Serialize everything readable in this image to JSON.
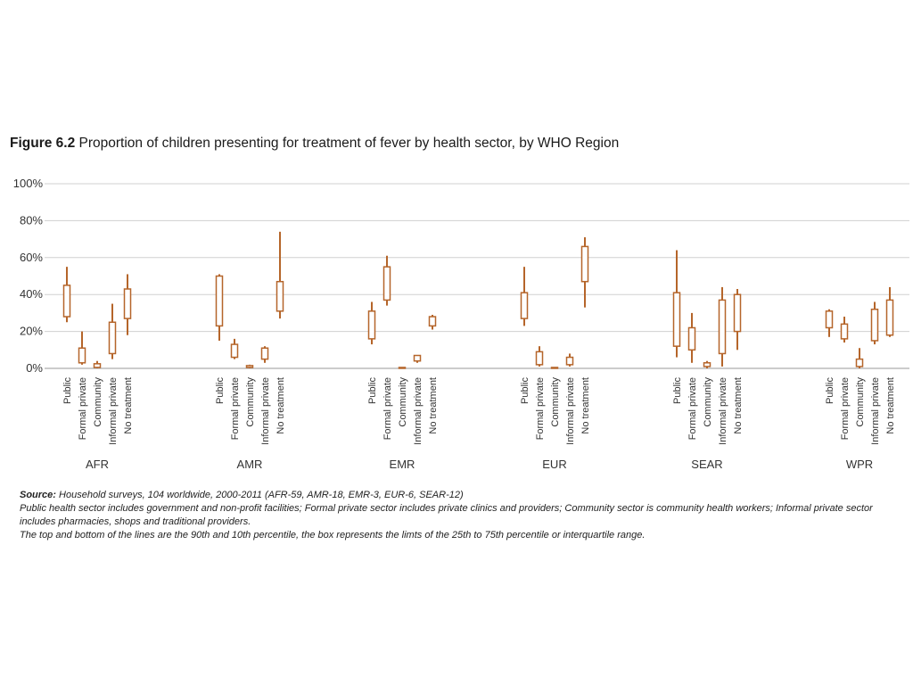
{
  "figure": {
    "label": "Figure 6.2",
    "title": "Proportion of children presenting for treatment of fever by health sector, by WHO Region"
  },
  "chart_data": {
    "type": "box",
    "ylim": [
      0,
      100
    ],
    "yticks": [
      0,
      20,
      40,
      60,
      80,
      100
    ],
    "ytick_labels": [
      "0%",
      "20%",
      "40%",
      "60%",
      "80%",
      "100%"
    ],
    "grid": true,
    "color": "#b5652a",
    "sectors": [
      "Public",
      "Formal private",
      "Community",
      "Informal private",
      "No treatment"
    ],
    "regions": [
      {
        "name": "AFR",
        "boxes": [
          {
            "p10": 25,
            "q1": 28,
            "q3": 45,
            "p90": 55
          },
          {
            "p10": 2,
            "q1": 3,
            "q3": 11,
            "p90": 20
          },
          {
            "p10": 0,
            "q1": 0.5,
            "q3": 2.5,
            "p90": 4
          },
          {
            "p10": 5,
            "q1": 8,
            "q3": 25,
            "p90": 35
          },
          {
            "p10": 18,
            "q1": 27,
            "q3": 43,
            "p90": 51
          }
        ]
      },
      {
        "name": "AMR",
        "boxes": [
          {
            "p10": 15,
            "q1": 23,
            "q3": 50,
            "p90": 51
          },
          {
            "p10": 5,
            "q1": 6,
            "q3": 13,
            "p90": 16
          },
          {
            "p10": 0,
            "q1": 0.5,
            "q3": 1.5,
            "p90": 2
          },
          {
            "p10": 3,
            "q1": 5,
            "q3": 11,
            "p90": 12
          },
          {
            "p10": 27,
            "q1": 31,
            "q3": 47,
            "p90": 74
          }
        ]
      },
      {
        "name": "EMR",
        "boxes": [
          {
            "p10": 13,
            "q1": 16,
            "q3": 31,
            "p90": 36
          },
          {
            "p10": 34,
            "q1": 37,
            "q3": 55,
            "p90": 61
          },
          {
            "p10": 0,
            "q1": 0,
            "q3": 0.5,
            "p90": 0.5
          },
          {
            "p10": 3,
            "q1": 4,
            "q3": 7,
            "p90": 7
          },
          {
            "p10": 21,
            "q1": 23,
            "q3": 28,
            "p90": 29
          }
        ]
      },
      {
        "name": "EUR",
        "boxes": [
          {
            "p10": 23,
            "q1": 27,
            "q3": 41,
            "p90": 55
          },
          {
            "p10": 1,
            "q1": 2,
            "q3": 9,
            "p90": 12
          },
          {
            "p10": 0,
            "q1": 0,
            "q3": 0.5,
            "p90": 0.5
          },
          {
            "p10": 1,
            "q1": 2,
            "q3": 6,
            "p90": 8
          },
          {
            "p10": 33,
            "q1": 47,
            "q3": 66,
            "p90": 71
          }
        ]
      },
      {
        "name": "SEAR",
        "boxes": [
          {
            "p10": 6,
            "q1": 12,
            "q3": 41,
            "p90": 64
          },
          {
            "p10": 3,
            "q1": 10,
            "q3": 22,
            "p90": 30
          },
          {
            "p10": 0,
            "q1": 1,
            "q3": 3,
            "p90": 4
          },
          {
            "p10": 1,
            "q1": 8,
            "q3": 37,
            "p90": 44
          },
          {
            "p10": 10,
            "q1": 20,
            "q3": 40,
            "p90": 43
          }
        ]
      },
      {
        "name": "WPR",
        "boxes": [
          {
            "p10": 17,
            "q1": 22,
            "q3": 31,
            "p90": 32
          },
          {
            "p10": 14,
            "q1": 16,
            "q3": 24,
            "p90": 28
          },
          {
            "p10": 0,
            "q1": 1,
            "q3": 5,
            "p90": 11
          },
          {
            "p10": 13,
            "q1": 15,
            "q3": 32,
            "p90": 36
          },
          {
            "p10": 17,
            "q1": 18,
            "q3": 37,
            "p90": 44
          }
        ]
      }
    ]
  },
  "notes": {
    "source_label": "Source:",
    "source_text": " Household surveys, 104 worldwide, 2000-2011 (AFR-59, AMR-18, EMR-3, EUR-6, SEAR-12)",
    "line2": "Public health sector includes government and non-profit facilities; Formal private sector includes private clinics and providers; Community sector is community health workers; Informal private sector includes pharmacies, shops and traditional providers.",
    "line3": "The top and bottom of the lines are the 90th and 10th percentile, the box represents the limts of the 25th to 75th percentile or interquartile range."
  }
}
